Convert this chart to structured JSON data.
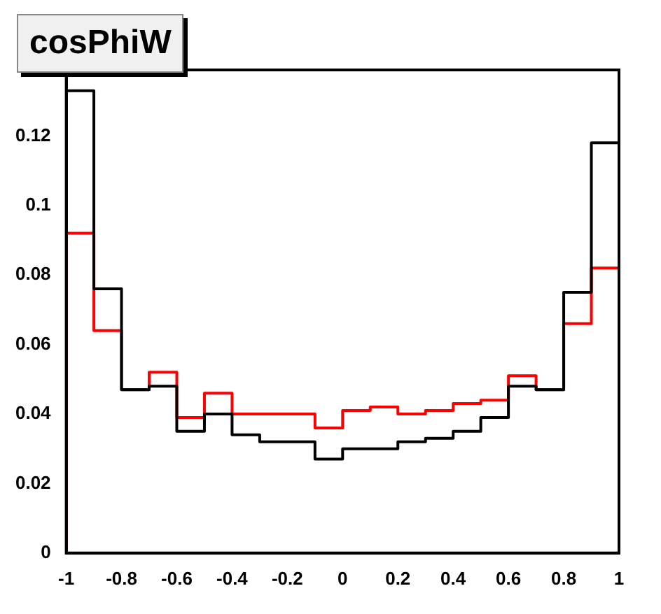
{
  "chart_data": {
    "type": "histogram",
    "title": "cosPhiW",
    "bins": [
      -1,
      -0.9,
      -0.8,
      -0.7,
      -0.6,
      -0.5,
      -0.4,
      -0.3,
      -0.2,
      -0.1,
      0,
      0.1,
      0.2,
      0.3,
      0.4,
      0.5,
      0.6,
      0.7,
      0.8,
      0.9,
      1
    ],
    "series": [
      {
        "color": "#000000",
        "values": [
          0.133,
          0.076,
          0.047,
          0.048,
          0.035,
          0.04,
          0.034,
          0.032,
          0.032,
          0.027,
          0.03,
          0.03,
          0.032,
          0.033,
          0.035,
          0.039,
          0.048,
          0.047,
          0.075,
          0.118
        ]
      },
      {
        "color": "#ff0000",
        "values": [
          0.092,
          0.064,
          0.047,
          0.052,
          0.039,
          0.046,
          0.04,
          0.04,
          0.04,
          0.036,
          0.041,
          0.042,
          0.04,
          0.041,
          0.043,
          0.044,
          0.051,
          0.047,
          0.066,
          0.082
        ]
      }
    ],
    "xlim": [
      -1,
      1
    ],
    "ylim": [
      0,
      0.139
    ],
    "xticks": [
      -1,
      -0.8,
      -0.6,
      -0.4,
      -0.2,
      0,
      0.2,
      0.4,
      0.6,
      0.8,
      1
    ],
    "yticks": [
      0,
      0.02,
      0.04,
      0.06,
      0.08,
      0.1,
      0.12
    ],
    "grid": false,
    "legend": false
  }
}
